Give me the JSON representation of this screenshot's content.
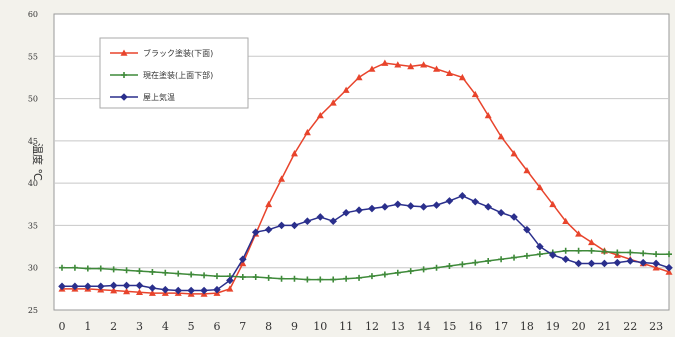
{
  "chart_data": {
    "type": "line",
    "title": "",
    "xlabel": "",
    "ylabel": "温度 ℃",
    "ylim": [
      25,
      60
    ],
    "xlim": [
      0,
      23.5
    ],
    "grid": true,
    "legend_placement": "top-left",
    "y_ticks": [
      "25",
      "30",
      "35",
      "40",
      "45",
      "50",
      "55",
      "60"
    ],
    "x_ticks": [
      "0",
      "1",
      "2",
      "3",
      "4",
      "5",
      "6",
      "7",
      "8",
      "9",
      "10",
      "11",
      "12",
      "13",
      "14",
      "15",
      "16",
      "17",
      "18",
      "19",
      "20",
      "21",
      "22",
      "23"
    ],
    "x": [
      0,
      0.5,
      1,
      1.5,
      2,
      2.5,
      3,
      3.5,
      4,
      4.5,
      5,
      5.5,
      6,
      6.5,
      7,
      7.5,
      8,
      8.5,
      9,
      9.5,
      10,
      10.5,
      11,
      11.5,
      12,
      12.5,
      13,
      13.5,
      14,
      14.5,
      15,
      15.5,
      16,
      16.5,
      17,
      17.5,
      18,
      18.5,
      19,
      19.5,
      20,
      20.5,
      21,
      21.5,
      22,
      22.5,
      23,
      23.5
    ],
    "series": [
      {
        "name": "ブラック塗装(下面)",
        "color": "#e8442c",
        "marker": "triangle",
        "values": [
          27.5,
          27.5,
          27.5,
          27.4,
          27.3,
          27.2,
          27.1,
          27.0,
          27.0,
          27.0,
          26.9,
          26.9,
          27.0,
          27.5,
          30.5,
          34.0,
          37.5,
          40.5,
          43.5,
          46.0,
          48.0,
          49.5,
          51.0,
          52.5,
          53.5,
          54.2,
          54.0,
          53.8,
          54.0,
          53.5,
          53.0,
          52.5,
          50.5,
          48.0,
          45.5,
          43.5,
          41.5,
          39.5,
          37.5,
          35.5,
          34.0,
          33.0,
          32.0,
          31.5,
          31.0,
          30.5,
          30.0,
          29.5
        ]
      },
      {
        "name": "現在塗装(上面下部)",
        "color": "#3f8a3a",
        "marker": "cross",
        "values": [
          30.0,
          30.0,
          29.9,
          29.9,
          29.8,
          29.7,
          29.6,
          29.5,
          29.4,
          29.3,
          29.2,
          29.1,
          29.0,
          29.0,
          28.9,
          28.9,
          28.8,
          28.7,
          28.7,
          28.6,
          28.6,
          28.6,
          28.7,
          28.8,
          29.0,
          29.2,
          29.4,
          29.6,
          29.8,
          30.0,
          30.2,
          30.4,
          30.6,
          30.8,
          31.0,
          31.2,
          31.4,
          31.6,
          31.8,
          32.0,
          32.0,
          32.0,
          31.9,
          31.8,
          31.8,
          31.7,
          31.6,
          31.6
        ]
      },
      {
        "name": "屋上気温",
        "color": "#2a2f8c",
        "marker": "diamond",
        "values": [
          27.8,
          27.8,
          27.8,
          27.8,
          27.9,
          27.9,
          27.9,
          27.6,
          27.4,
          27.3,
          27.3,
          27.3,
          27.4,
          28.5,
          31.0,
          34.2,
          34.5,
          35.0,
          35.0,
          35.5,
          36.0,
          35.5,
          36.5,
          36.8,
          37.0,
          37.2,
          37.5,
          37.3,
          37.2,
          37.4,
          37.9,
          38.5,
          37.8,
          37.2,
          36.5,
          36.0,
          34.5,
          32.5,
          31.5,
          31.0,
          30.5,
          30.5,
          30.5,
          30.6,
          30.8,
          30.6,
          30.5,
          30.0
        ]
      }
    ]
  }
}
